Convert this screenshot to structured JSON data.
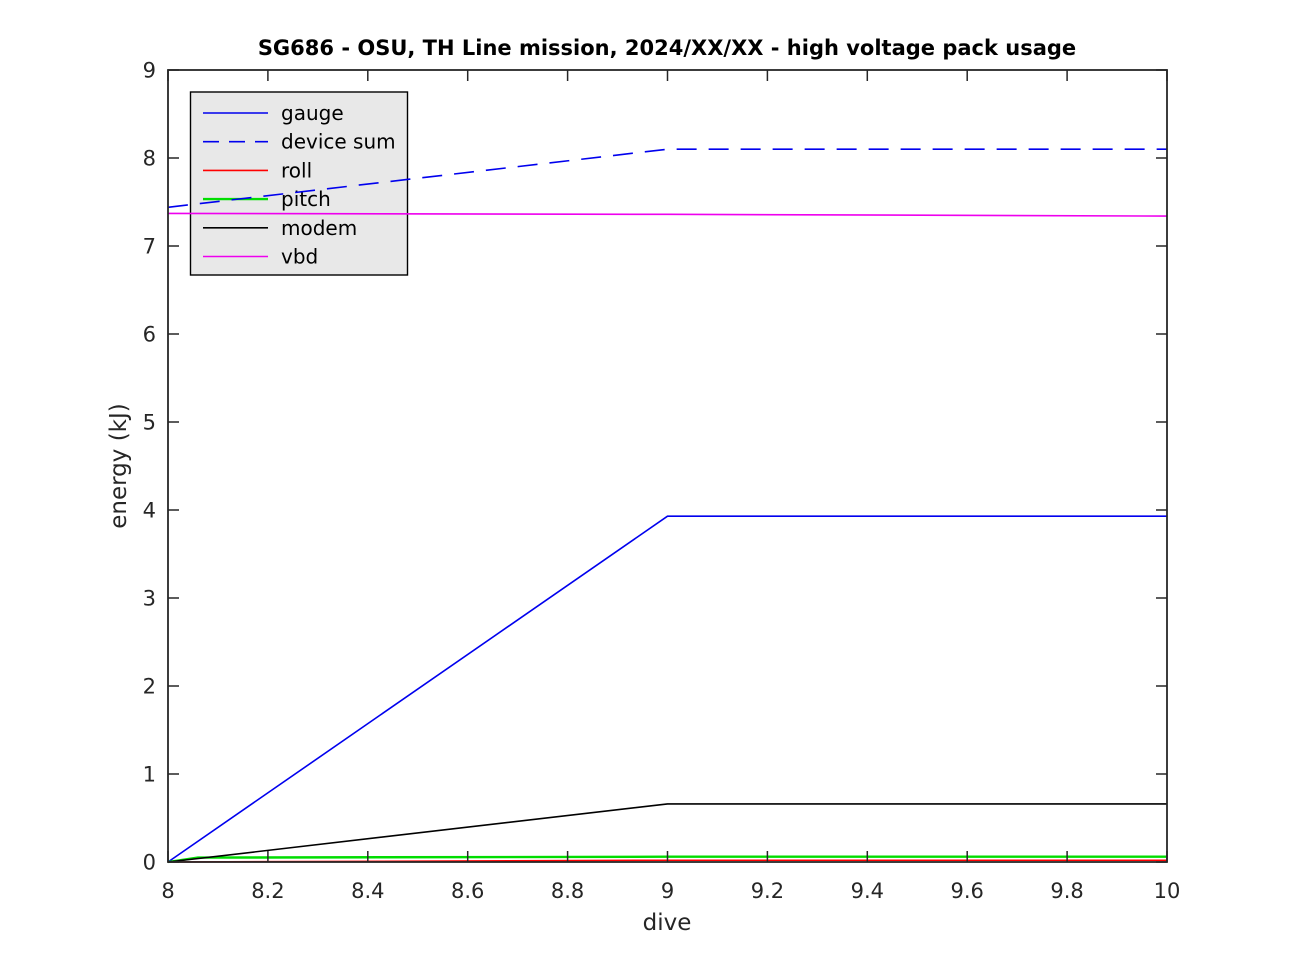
{
  "figure": {
    "background": "#ffffff",
    "axis_color": "#262626",
    "text_color": "#262626",
    "title_color": "#000000"
  },
  "chart_data": {
    "type": "line",
    "title": "SG686 - OSU, TH Line mission, 2024/XX/XX - high voltage pack usage",
    "xlabel": "dive",
    "ylabel": "energy (kJ)",
    "xlim": [
      8,
      10
    ],
    "ylim": [
      0,
      9
    ],
    "xticks": [
      8,
      8.2,
      8.4,
      8.6,
      8.8,
      9,
      9.2,
      9.4,
      9.6,
      9.8,
      10
    ],
    "yticks": [
      0,
      1,
      2,
      3,
      4,
      5,
      6,
      7,
      8,
      9
    ],
    "grid": false,
    "tick_direction": "in",
    "box_on_all_sides": true,
    "legend": {
      "position": "upper-left",
      "background": "#e8e8e8",
      "border": "#000000",
      "entries": [
        "gauge",
        "device sum",
        "roll",
        "pitch",
        "modem",
        "vbd"
      ]
    },
    "series": [
      {
        "name": "gauge",
        "color": "#0000ee",
        "style": "solid",
        "width": 1.6,
        "x": [
          8,
          9,
          10
        ],
        "y": [
          0,
          3.93,
          3.93
        ]
      },
      {
        "name": "device sum",
        "color": "#0000ee",
        "style": "dashed",
        "width": 1.6,
        "x": [
          8,
          9,
          10
        ],
        "y": [
          7.44,
          8.1,
          8.1
        ]
      },
      {
        "name": "roll",
        "color": "#ff0000",
        "style": "solid",
        "width": 1.6,
        "x": [
          8,
          9,
          10
        ],
        "y": [
          0,
          0.02,
          0.02
        ]
      },
      {
        "name": "pitch",
        "color": "#00dd00",
        "style": "solid",
        "width": 2.4,
        "x": [
          8,
          8.06,
          9,
          10
        ],
        "y": [
          0,
          0.05,
          0.06,
          0.06
        ]
      },
      {
        "name": "modem",
        "color": "#000000",
        "style": "solid",
        "width": 1.6,
        "x": [
          8,
          9,
          10
        ],
        "y": [
          0,
          0.66,
          0.66
        ]
      },
      {
        "name": "vbd",
        "color": "#ee00ee",
        "style": "solid",
        "width": 1.6,
        "x": [
          8,
          9,
          10
        ],
        "y": [
          7.37,
          7.36,
          7.34
        ]
      }
    ]
  }
}
